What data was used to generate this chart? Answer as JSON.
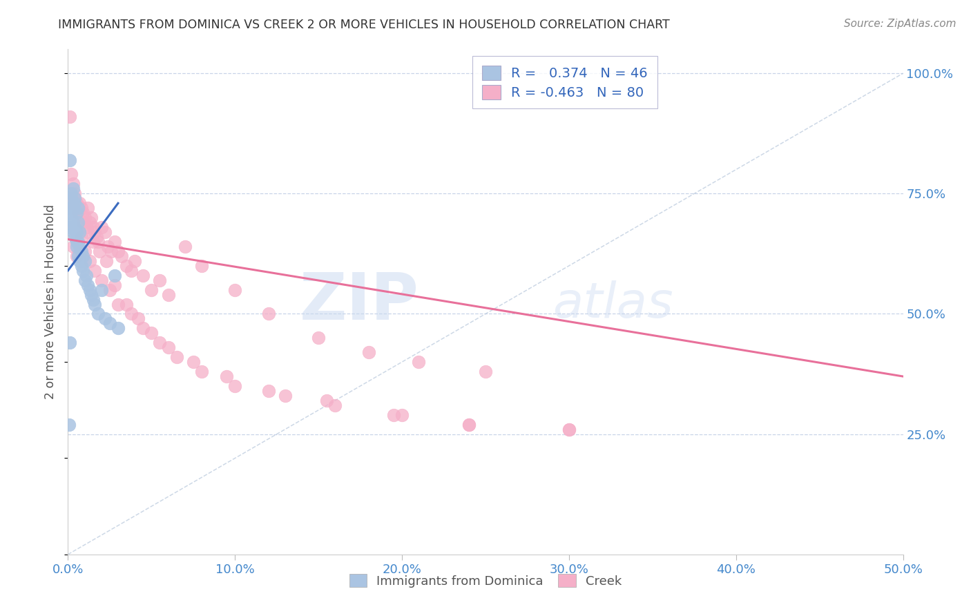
{
  "title": "IMMIGRANTS FROM DOMINICA VS CREEK 2 OR MORE VEHICLES IN HOUSEHOLD CORRELATION CHART",
  "source": "Source: ZipAtlas.com",
  "ylabel_label": "2 or more Vehicles in Household",
  "legend_blue_r": "0.374",
  "legend_blue_n": "46",
  "legend_pink_r": "-0.463",
  "legend_pink_n": "80",
  "legend_label_blue": "Immigrants from Dominica",
  "legend_label_pink": "Creek",
  "blue_color": "#aac4e2",
  "pink_color": "#f5afc8",
  "blue_line_color": "#3b6bbf",
  "pink_line_color": "#e8709a",
  "diagonal_color": "#b8c8dc",
  "watermark_zip": "ZIP",
  "watermark_atlas": "atlas",
  "xticklabels": [
    "0.0%",
    "10.0%",
    "20.0%",
    "30.0%",
    "40.0%",
    "50.0%"
  ],
  "xticks": [
    0.0,
    0.1,
    0.2,
    0.3,
    0.4,
    0.5
  ],
  "yticks_right": [
    1.0,
    0.75,
    0.5,
    0.25
  ],
  "yticklabels_right": [
    "100.0%",
    "75.0%",
    "50.0%",
    "25.0%"
  ],
  "xlim": [
    0.0,
    0.5
  ],
  "ylim": [
    0.0,
    1.05
  ],
  "blue_x": [
    0.0005,
    0.001,
    0.001,
    0.002,
    0.002,
    0.002,
    0.003,
    0.003,
    0.003,
    0.004,
    0.004,
    0.004,
    0.005,
    0.005,
    0.005,
    0.005,
    0.006,
    0.006,
    0.006,
    0.007,
    0.007,
    0.007,
    0.008,
    0.008,
    0.009,
    0.009,
    0.01,
    0.01,
    0.011,
    0.012,
    0.013,
    0.014,
    0.015,
    0.016,
    0.018,
    0.02,
    0.022,
    0.025,
    0.028,
    0.03,
    0.001,
    0.002,
    0.003,
    0.004,
    0.006,
    0.001
  ],
  "blue_y": [
    0.27,
    0.68,
    0.71,
    0.72,
    0.7,
    0.74,
    0.69,
    0.67,
    0.72,
    0.66,
    0.68,
    0.73,
    0.65,
    0.67,
    0.71,
    0.64,
    0.62,
    0.65,
    0.69,
    0.61,
    0.64,
    0.67,
    0.6,
    0.63,
    0.59,
    0.62,
    0.57,
    0.61,
    0.58,
    0.56,
    0.55,
    0.54,
    0.53,
    0.52,
    0.5,
    0.55,
    0.49,
    0.48,
    0.58,
    0.47,
    0.82,
    0.75,
    0.76,
    0.74,
    0.72,
    0.44
  ],
  "pink_x": [
    0.001,
    0.002,
    0.003,
    0.004,
    0.005,
    0.006,
    0.007,
    0.008,
    0.009,
    0.01,
    0.011,
    0.012,
    0.013,
    0.014,
    0.015,
    0.016,
    0.017,
    0.018,
    0.02,
    0.022,
    0.024,
    0.026,
    0.028,
    0.03,
    0.032,
    0.035,
    0.038,
    0.04,
    0.045,
    0.05,
    0.055,
    0.06,
    0.07,
    0.08,
    0.1,
    0.12,
    0.15,
    0.18,
    0.21,
    0.25,
    0.003,
    0.005,
    0.008,
    0.01,
    0.013,
    0.016,
    0.02,
    0.025,
    0.03,
    0.038,
    0.045,
    0.055,
    0.065,
    0.08,
    0.1,
    0.13,
    0.16,
    0.2,
    0.24,
    0.3,
    0.002,
    0.004,
    0.006,
    0.009,
    0.012,
    0.015,
    0.019,
    0.023,
    0.028,
    0.035,
    0.042,
    0.05,
    0.06,
    0.075,
    0.095,
    0.12,
    0.155,
    0.195,
    0.24,
    0.3
  ],
  "pink_y": [
    0.91,
    0.79,
    0.77,
    0.74,
    0.73,
    0.72,
    0.73,
    0.72,
    0.71,
    0.7,
    0.68,
    0.72,
    0.69,
    0.7,
    0.68,
    0.67,
    0.66,
    0.65,
    0.68,
    0.67,
    0.64,
    0.63,
    0.65,
    0.63,
    0.62,
    0.6,
    0.59,
    0.61,
    0.58,
    0.55,
    0.57,
    0.54,
    0.64,
    0.6,
    0.55,
    0.5,
    0.45,
    0.42,
    0.4,
    0.38,
    0.64,
    0.62,
    0.66,
    0.63,
    0.61,
    0.59,
    0.57,
    0.55,
    0.52,
    0.5,
    0.47,
    0.44,
    0.41,
    0.38,
    0.35,
    0.33,
    0.31,
    0.29,
    0.27,
    0.26,
    0.73,
    0.75,
    0.71,
    0.69,
    0.67,
    0.65,
    0.63,
    0.61,
    0.56,
    0.52,
    0.49,
    0.46,
    0.43,
    0.4,
    0.37,
    0.34,
    0.32,
    0.29,
    0.27,
    0.26
  ],
  "pink_line_x0": 0.0,
  "pink_line_y0": 0.655,
  "pink_line_x1": 0.5,
  "pink_line_y1": 0.37,
  "blue_line_x0": 0.0,
  "blue_line_y0": 0.59,
  "blue_line_x1": 0.03,
  "blue_line_y1": 0.73
}
